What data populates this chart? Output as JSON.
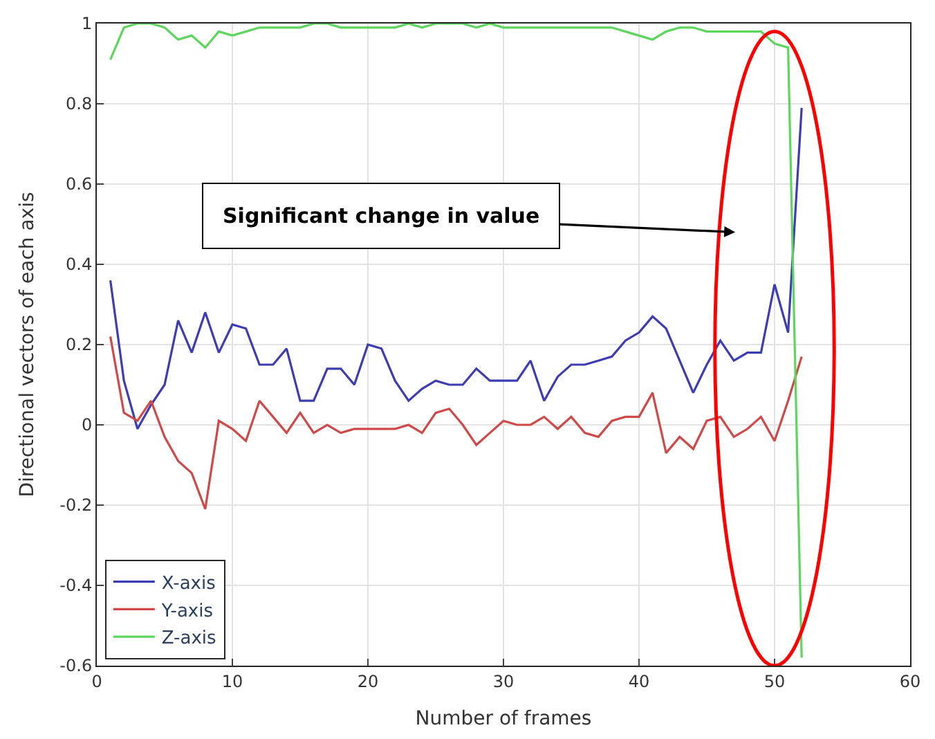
{
  "chart_data": {
    "type": "line",
    "xlabel": "Number of frames",
    "ylabel": "Directional vectors of each axis",
    "x": [
      1,
      2,
      3,
      4,
      5,
      6,
      7,
      8,
      9,
      10,
      11,
      12,
      13,
      14,
      15,
      16,
      17,
      18,
      19,
      20,
      21,
      22,
      23,
      24,
      25,
      26,
      27,
      28,
      29,
      30,
      31,
      32,
      33,
      34,
      35,
      36,
      37,
      38,
      39,
      40,
      41,
      42,
      43,
      44,
      45,
      46,
      47,
      48,
      49,
      50,
      51,
      52
    ],
    "series": [
      {
        "name": "X-axis",
        "color": "#3c3cb4",
        "values": [
          0.36,
          0.11,
          -0.01,
          0.05,
          0.1,
          0.26,
          0.18,
          0.28,
          0.18,
          0.25,
          0.24,
          0.15,
          0.15,
          0.19,
          0.06,
          0.06,
          0.14,
          0.14,
          0.1,
          0.2,
          0.19,
          0.11,
          0.06,
          0.09,
          0.11,
          0.1,
          0.1,
          0.14,
          0.11,
          0.11,
          0.11,
          0.16,
          0.06,
          0.12,
          0.15,
          0.15,
          0.16,
          0.17,
          0.21,
          0.23,
          0.27,
          0.24,
          0.16,
          0.08,
          0.15,
          0.21,
          0.16,
          0.18,
          0.18,
          0.35,
          0.23,
          0.79
        ]
      },
      {
        "name": "Y-axis",
        "color": "#d04848",
        "values": [
          0.22,
          0.03,
          0.01,
          0.06,
          -0.03,
          -0.09,
          -0.12,
          -0.21,
          0.01,
          -0.01,
          -0.04,
          0.06,
          0.02,
          -0.02,
          0.03,
          -0.02,
          0.0,
          -0.02,
          -0.01,
          -0.01,
          -0.01,
          -0.01,
          0.0,
          -0.02,
          0.03,
          0.04,
          0.0,
          -0.05,
          -0.02,
          0.01,
          0.0,
          0.0,
          0.02,
          -0.01,
          0.02,
          -0.02,
          -0.03,
          0.01,
          0.02,
          0.02,
          0.08,
          -0.07,
          -0.03,
          -0.06,
          0.01,
          0.02,
          -0.03,
          -0.01,
          0.02,
          -0.04,
          0.06,
          0.17
        ]
      },
      {
        "name": "Z-axis",
        "color": "#5cd65c",
        "values": [
          0.91,
          0.99,
          1.0,
          1.0,
          0.99,
          0.96,
          0.97,
          0.94,
          0.98,
          0.97,
          0.98,
          0.99,
          0.99,
          0.99,
          0.99,
          1.0,
          1.0,
          0.99,
          0.99,
          0.99,
          0.99,
          0.99,
          1.0,
          0.99,
          1.0,
          1.0,
          1.0,
          0.99,
          1.0,
          0.99,
          0.99,
          0.99,
          0.99,
          0.99,
          0.99,
          0.99,
          0.99,
          0.99,
          0.98,
          0.97,
          0.96,
          0.98,
          0.99,
          0.99,
          0.98,
          0.98,
          0.98,
          0.98,
          0.98,
          0.95,
          0.94,
          -0.58
        ]
      }
    ],
    "xlim": [
      0,
      60
    ],
    "xticks": [
      0,
      10,
      20,
      30,
      40,
      50,
      60
    ],
    "ylim": [
      -0.6,
      1
    ],
    "yticks": [
      -0.6,
      -0.4,
      -0.2,
      0,
      0.2,
      0.4,
      0.6,
      0.8,
      1
    ],
    "grid": true,
    "legend": "bottom left",
    "marker": "none",
    "line_style": "solid",
    "annotations": [
      "Significant change in value"
    ]
  }
}
